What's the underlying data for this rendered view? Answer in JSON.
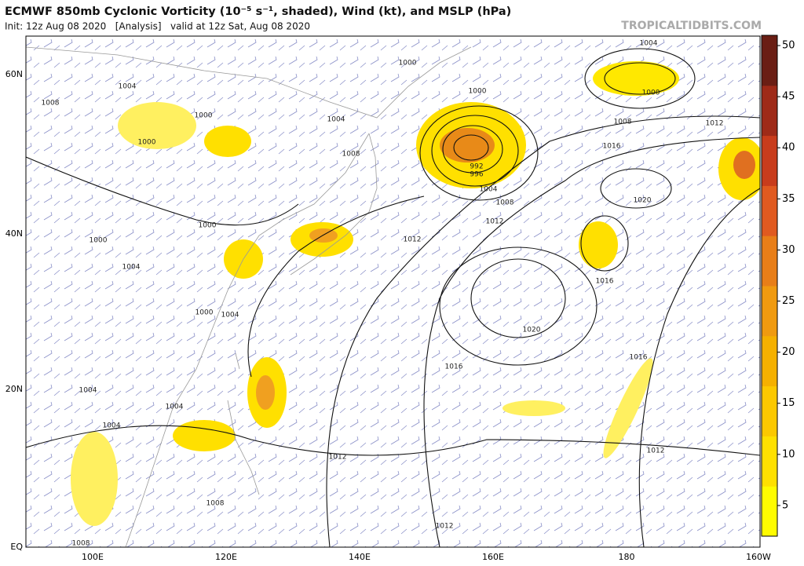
{
  "header": {
    "title": "ECMWF 850mb Cyclonic Vorticity (10⁻⁵ s⁻¹, shaded), Wind (kt), and MSLP (hPa)",
    "subtitle": "Init: 12z Aug 08 2020   [Analysis]   valid at 12z Sat, Aug 08 2020",
    "source": "TROPICALTIDBITS.COM"
  },
  "map": {
    "latitude_labels": [
      "60N",
      "40N",
      "20N",
      "EQ"
    ],
    "longitude_labels": [
      "100E",
      "120E",
      "140E",
      "160E",
      "180",
      "160W"
    ],
    "isobar_labels": [
      "1004",
      "1000",
      "1000",
      "1008",
      "1012",
      "1016",
      "1000",
      "992",
      "996",
      "1004",
      "1008",
      "1012",
      "1020",
      "1012",
      "1016",
      "1020",
      "1016",
      "1016",
      "1012",
      "1012",
      "1012",
      "1004",
      "1008",
      "1000",
      "1000",
      "1008",
      "1004",
      "1000",
      "1000",
      "1004",
      "1000",
      "1004",
      "1004",
      "1004",
      "1004",
      "1008",
      "1008"
    ]
  },
  "colorbar": {
    "range": [
      2,
      51
    ],
    "ticks": [
      5,
      10,
      15,
      20,
      25,
      30,
      35,
      40,
      45,
      50
    ],
    "colors": [
      "#fffc00",
      "#ffe000",
      "#fcc800",
      "#f5b000",
      "#f09a10",
      "#e87e18",
      "#e05a20",
      "#c83c1c",
      "#9e2a18",
      "#6a1e14"
    ]
  }
}
